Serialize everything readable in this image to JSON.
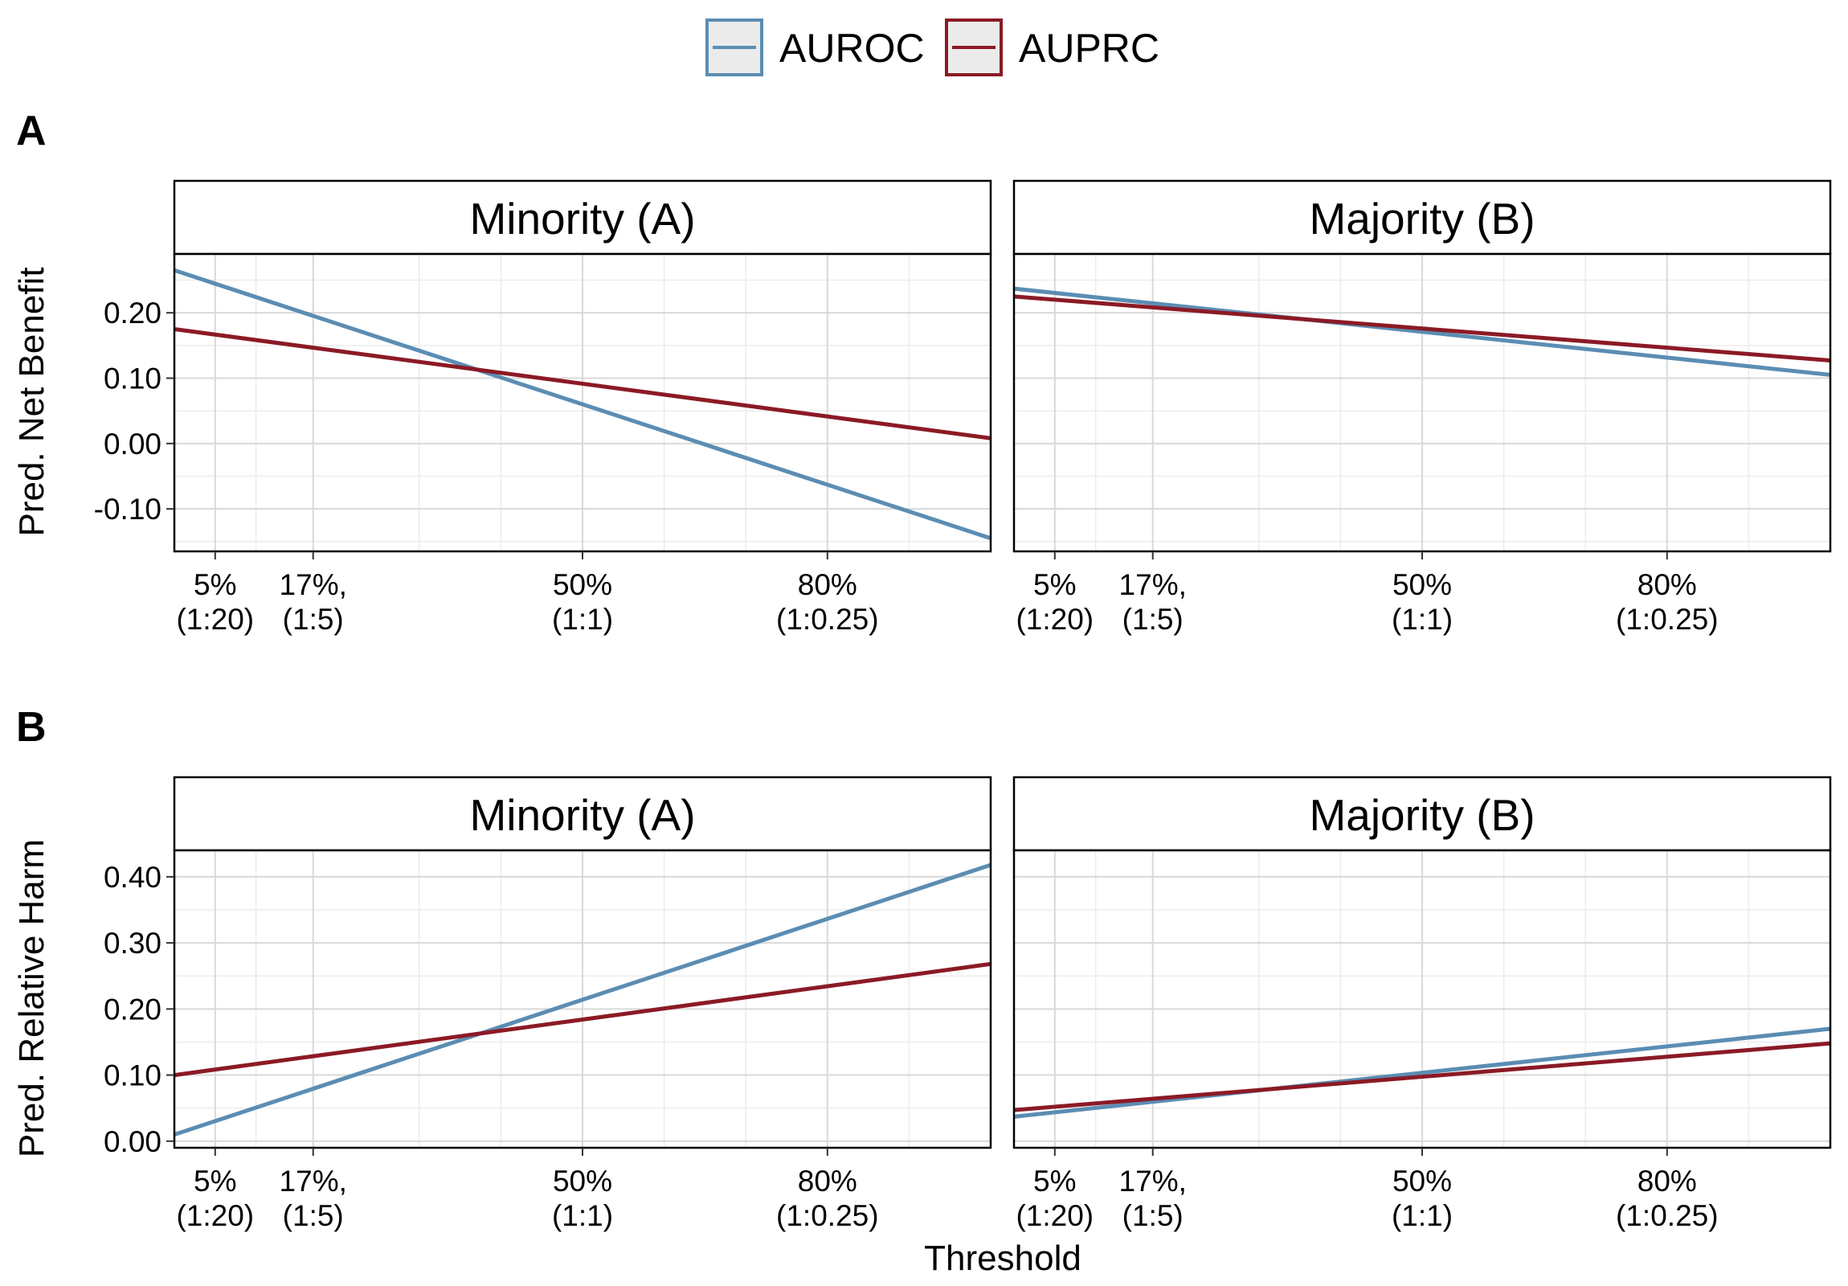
{
  "colors": {
    "AUROC": "#5b8db3",
    "AUPRC": "#8b1a25",
    "grid_major": "#d9d9d9",
    "grid_minor": "#ececec"
  },
  "legend": {
    "items": [
      {
        "label": "AUROC",
        "color_key": "AUROC"
      },
      {
        "label": "AUPRC",
        "color_key": "AUPRC"
      }
    ]
  },
  "x_axis": {
    "title": "Threshold",
    "range": [
      0.0,
      1.0
    ],
    "ticks": [
      {
        "value": 0.05,
        "line1": "5%",
        "line2": "(1:20)"
      },
      {
        "value": 0.17,
        "line1": "17%,",
        "line2": "(1:5)"
      },
      {
        "value": 0.5,
        "line1": "50%",
        "line2": "(1:1)"
      },
      {
        "value": 0.8,
        "line1": "80%",
        "line2": "(1:0.25)"
      }
    ]
  },
  "chart_data": [
    {
      "panel": "A",
      "type": "line",
      "ylabel": "Pred. Net Benefit",
      "ylim": [
        -0.165,
        0.29
      ],
      "yticks": [
        -0.1,
        0.0,
        0.1,
        0.2
      ],
      "ytick_labels": [
        "-0.10",
        "0.00",
        "0.10",
        "0.20"
      ],
      "facets": [
        {
          "strip": "Minority (A)",
          "series": [
            {
              "name": "AUROC",
              "x": [
                0.0,
                1.0
              ],
              "y": [
                0.265,
                -0.145
              ]
            },
            {
              "name": "AUPRC",
              "x": [
                0.0,
                1.0
              ],
              "y": [
                0.175,
                0.008
              ]
            }
          ]
        },
        {
          "strip": "Majority (B)",
          "series": [
            {
              "name": "AUROC",
              "x": [
                0.0,
                1.0
              ],
              "y": [
                0.237,
                0.105
              ]
            },
            {
              "name": "AUPRC",
              "x": [
                0.0,
                1.0
              ],
              "y": [
                0.225,
                0.127
              ]
            }
          ]
        }
      ]
    },
    {
      "panel": "B",
      "type": "line",
      "ylabel": "Pred. Relative Harm",
      "ylim": [
        -0.01,
        0.44
      ],
      "yticks": [
        0.0,
        0.1,
        0.2,
        0.3,
        0.4
      ],
      "ytick_labels": [
        "0.00",
        "0.10",
        "0.20",
        "0.30",
        "0.40"
      ],
      "facets": [
        {
          "strip": "Minority (A)",
          "series": [
            {
              "name": "AUROC",
              "x": [
                0.0,
                1.0
              ],
              "y": [
                0.01,
                0.418
              ]
            },
            {
              "name": "AUPRC",
              "x": [
                0.0,
                1.0
              ],
              "y": [
                0.1,
                0.268
              ]
            }
          ]
        },
        {
          "strip": "Majority (B)",
          "series": [
            {
              "name": "AUROC",
              "x": [
                0.0,
                1.0
              ],
              "y": [
                0.037,
                0.17
              ]
            },
            {
              "name": "AUPRC",
              "x": [
                0.0,
                1.0
              ],
              "y": [
                0.047,
                0.148
              ]
            }
          ]
        }
      ]
    }
  ]
}
